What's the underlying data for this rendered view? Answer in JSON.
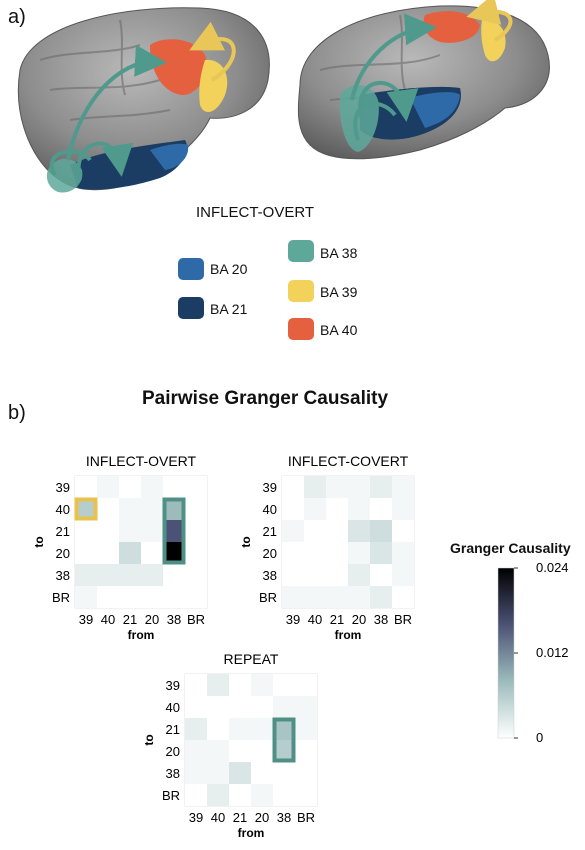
{
  "panels": {
    "a_label": "a)",
    "b_label": "b)"
  },
  "legend": {
    "title": "INFLECT-OVERT",
    "items": [
      {
        "label": "BA 20",
        "color": "#2f6aa8"
      },
      {
        "label": "BA 21",
        "color": "#1b3d63"
      },
      {
        "label": "BA 38",
        "color": "#5ea89a"
      },
      {
        "label": "BA 39",
        "color": "#f2d25a"
      },
      {
        "label": "BA 40",
        "color": "#e4603f"
      }
    ]
  },
  "section_title": "Pairwise Granger Causality",
  "chart_data": {
    "type": "heatmap",
    "axis_ticks": [
      "39",
      "40",
      "21",
      "20",
      "38",
      "BR"
    ],
    "xlabel": "from",
    "ylabel": "to",
    "colorbar": {
      "title": "Granger Causality",
      "range": [
        0,
        0.024
      ],
      "ticks": [
        "0.024",
        "0.012",
        "0"
      ],
      "colors": [
        "#ffffff",
        "#9cbcbc",
        "#4c5275",
        "#000000"
      ]
    },
    "highlight_colors": {
      "yellow": "#e9c24d",
      "teal": "#4f8f86"
    },
    "matrices": [
      {
        "title": "INFLECT-OVERT",
        "values": [
          [
            0,
            0.001,
            0,
            0.001,
            0,
            0
          ],
          [
            0.006,
            0,
            0.001,
            0.001,
            0.008,
            0
          ],
          [
            0,
            0,
            0.001,
            0.001,
            0.016,
            0
          ],
          [
            0,
            0,
            0.004,
            0,
            0.024,
            0
          ],
          [
            0.002,
            0.002,
            0.002,
            0.002,
            0,
            0
          ],
          [
            0.001,
            0,
            0,
            0,
            0,
            0
          ]
        ],
        "highlights": [
          {
            "row": 1,
            "col": 0,
            "rows": 1,
            "color": "yellow"
          },
          {
            "row": 1,
            "col": 4,
            "rows": 3,
            "color": "teal"
          }
        ]
      },
      {
        "title": "INFLECT-COVERT",
        "values": [
          [
            0,
            0.002,
            0.001,
            0.001,
            0.002,
            0.001
          ],
          [
            0,
            0.001,
            0,
            0.001,
            0,
            0.001
          ],
          [
            0.001,
            0,
            0,
            0.003,
            0.004,
            0
          ],
          [
            0,
            0,
            0,
            0.001,
            0.003,
            0.001
          ],
          [
            0,
            0,
            0,
            0.002,
            0,
            0.001
          ],
          [
            0.001,
            0.001,
            0.001,
            0.001,
            0.002,
            0
          ]
        ],
        "highlights": []
      },
      {
        "title": "REPEAT",
        "values": [
          [
            0,
            0.002,
            0,
            0.001,
            0,
            0
          ],
          [
            0,
            0,
            0,
            0,
            0.001,
            0.001
          ],
          [
            0.002,
            0,
            0.001,
            0.001,
            0.007,
            0.001
          ],
          [
            0.001,
            0.001,
            0,
            0,
            0.006,
            0
          ],
          [
            0.001,
            0.001,
            0.003,
            0,
            0,
            0
          ],
          [
            0,
            0.002,
            0,
            0.001,
            0,
            0
          ]
        ],
        "highlights": [
          {
            "row": 2,
            "col": 4,
            "rows": 2,
            "color": "teal"
          }
        ]
      }
    ]
  }
}
